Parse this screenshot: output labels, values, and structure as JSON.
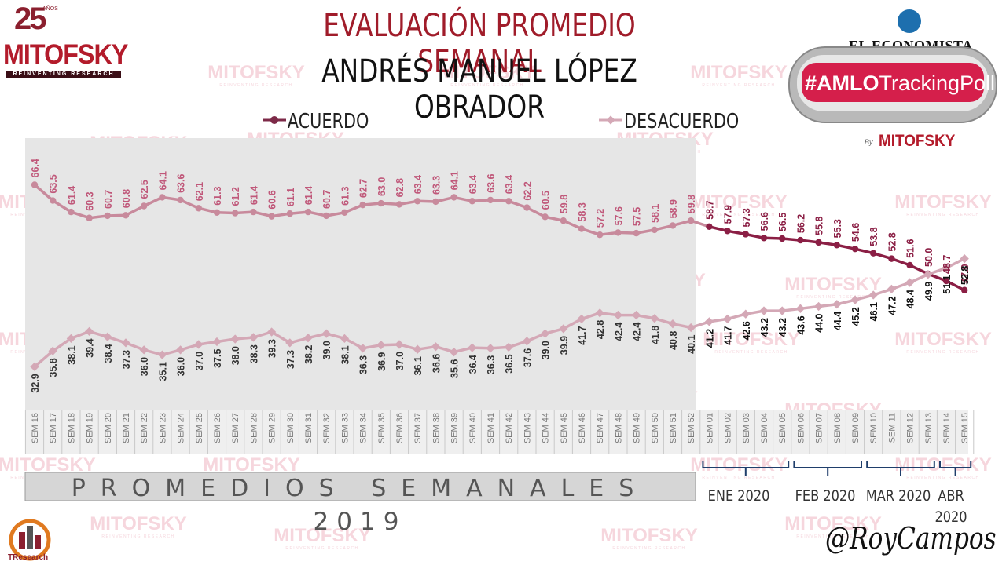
{
  "header": {
    "title_line1": "EVALUACIÓN PROMEDIO SEMANAL",
    "title_line2": "ANDRÉS MANUEL LÓPEZ OBRADOR"
  },
  "logo": {
    "years": "25",
    "years_label": "AÑOS",
    "brand": "MITOFSKY",
    "tagline": "REINVENTING RESEARCH"
  },
  "partner": {
    "newspaper": "EL ECONOMISTA",
    "hashtag_bold": "#AMLO",
    "hashtag_rest": "TrackingPoll",
    "by_label": "By",
    "by_brand": "MITOFSKY"
  },
  "watermark": {
    "brand": "MITOFSKY",
    "tagline": "REINVENTING RESEARCH"
  },
  "footer": {
    "band_label": "PROMEDIOS SEMANALES",
    "year_2019": "2019",
    "months": [
      "ENE 2020",
      "FEB 2020",
      "MAR 2020",
      "ABR 2020"
    ],
    "signature": "@RoyCampos",
    "tresearch": "TResearch"
  },
  "colors": {
    "acuerdo": "#7d2a48",
    "desacuerdo": "#d4a8b6",
    "acuerdo_2020": "#8b1f45",
    "label_2019": "#c0587a",
    "label_2020": "#111111",
    "title_red": "#a01c2a",
    "shade_2019": "#e6e6e6"
  },
  "chart_data": {
    "type": "line",
    "categories": [
      "SEM 16",
      "SEM 17",
      "SEM 18",
      "SEM 19",
      "SEM 20",
      "SEM 21",
      "SEM 22",
      "SEM 23",
      "SEM 24",
      "SEM 25",
      "SEM 26",
      "SEM 27",
      "SEM 28",
      "SEM 29",
      "SEM 30",
      "SEM 31",
      "SEM 32",
      "SEM 33",
      "SEM 34",
      "SEM 35",
      "SEM 36",
      "SEM 37",
      "SEM 38",
      "SEM 39",
      "SEM 40",
      "SEM 41",
      "SEM 42",
      "SEM 43",
      "SEM 44",
      "SEM 45",
      "SEM 46",
      "SEM 47",
      "SEM 48",
      "SEM 49",
      "SEM 50",
      "SEM 51",
      "SEM 52",
      "SEM 01",
      "SEM 02",
      "SEM 03",
      "SEM 04",
      "SEM 05",
      "SEM 06",
      "SEM 07",
      "SEM 08",
      "SEM 09",
      "SEM 10",
      "SEM 11",
      "SEM 12",
      "SEM 13",
      "SEM 14",
      "SEM 15"
    ],
    "series": [
      {
        "name": "ACUERDO",
        "values": [
          66.4,
          63.5,
          61.4,
          60.3,
          60.7,
          60.8,
          62.5,
          64.1,
          63.6,
          62.1,
          61.3,
          61.2,
          61.4,
          60.6,
          61.1,
          61.4,
          60.7,
          61.3,
          62.7,
          63.0,
          62.8,
          63.4,
          63.3,
          64.1,
          63.4,
          63.6,
          63.4,
          62.2,
          60.5,
          59.8,
          58.3,
          57.2,
          57.6,
          57.5,
          58.1,
          58.9,
          59.8,
          58.7,
          57.9,
          57.3,
          56.6,
          56.5,
          56.2,
          55.8,
          55.3,
          54.6,
          53.8,
          52.8,
          51.6,
          50.0,
          48.7,
          47.0
        ]
      },
      {
        "name": "DESACUERDO",
        "values": [
          32.9,
          35.8,
          38.1,
          39.4,
          38.4,
          37.3,
          36.0,
          35.1,
          36.0,
          37.0,
          37.5,
          38.0,
          38.3,
          39.3,
          37.3,
          38.2,
          39.0,
          38.1,
          36.3,
          36.9,
          37.0,
          36.1,
          36.6,
          35.6,
          36.4,
          36.3,
          36.5,
          37.6,
          39.0,
          39.9,
          41.7,
          42.8,
          42.4,
          42.4,
          41.8,
          40.8,
          40.1,
          41.2,
          41.7,
          42.6,
          43.2,
          43.2,
          43.6,
          44.0,
          44.4,
          45.2,
          46.1,
          47.2,
          48.4,
          49.9,
          51.1,
          52.8
        ]
      }
    ],
    "legend": "top",
    "ylim": [
      25,
      75
    ]
  }
}
